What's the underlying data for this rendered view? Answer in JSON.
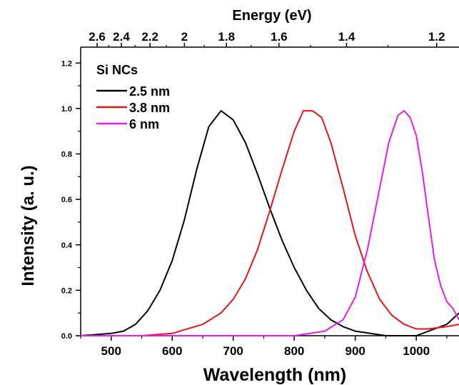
{
  "chart_data": {
    "type": "line",
    "legend_title": "Si NCs",
    "legend_position": "top-left",
    "xlabel": "Wavelength (nm)",
    "ylabel": "Intensity (a. u.)",
    "top_xlabel": "Energy (eV)",
    "xlim": [
      450,
      1070
    ],
    "ylim": [
      0,
      1.27
    ],
    "x_ticks": [
      500,
      600,
      700,
      800,
      900,
      1000
    ],
    "y_ticks": [
      0.0,
      0.2,
      0.4,
      0.6,
      0.8,
      1.0,
      1.2
    ],
    "y_tick_labels": [
      "0.0",
      "0.2",
      "0.4",
      "0.6",
      "0.8",
      "1.0",
      "1.2"
    ],
    "top_ticks": [
      {
        "label": "2.6",
        "value": 2.6
      },
      {
        "label": "2.4",
        "value": 2.4
      },
      {
        "label": "2.2",
        "value": 2.2
      },
      {
        "label": "2",
        "value": 2.0
      },
      {
        "label": "1.8",
        "value": 1.8
      },
      {
        "label": "1.6",
        "value": 1.6
      },
      {
        "label": "1.4",
        "value": 1.4
      },
      {
        "label": "1.2",
        "value": 1.2
      }
    ],
    "series": [
      {
        "name": "2.5 nm",
        "color": "#000000",
        "x": [
          450,
          500,
          520,
          540,
          560,
          580,
          600,
          620,
          640,
          660,
          680,
          700,
          720,
          740,
          760,
          780,
          800,
          820,
          840,
          860,
          880,
          900,
          950,
          1000,
          1050,
          1070
        ],
        "y": [
          0.0,
          0.01,
          0.02,
          0.05,
          0.11,
          0.2,
          0.33,
          0.51,
          0.73,
          0.92,
          0.99,
          0.95,
          0.85,
          0.71,
          0.56,
          0.42,
          0.3,
          0.2,
          0.12,
          0.07,
          0.04,
          0.02,
          0.0,
          0.0,
          0.05,
          0.1
        ]
      },
      {
        "name": "3.8 nm",
        "color": "#e3141c",
        "x": [
          450,
          550,
          600,
          650,
          680,
          700,
          720,
          740,
          760,
          780,
          800,
          815,
          830,
          845,
          860,
          880,
          900,
          920,
          940,
          960,
          980,
          1000,
          1020,
          1050,
          1070
        ],
        "y": [
          0.0,
          0.0,
          0.01,
          0.05,
          0.1,
          0.16,
          0.25,
          0.38,
          0.55,
          0.73,
          0.9,
          0.99,
          0.99,
          0.96,
          0.85,
          0.65,
          0.44,
          0.28,
          0.16,
          0.09,
          0.05,
          0.03,
          0.03,
          0.04,
          0.05
        ]
      },
      {
        "name": "6 nm",
        "color": "#e81ce8",
        "x": [
          450,
          800,
          850,
          880,
          900,
          920,
          940,
          955,
          970,
          980,
          990,
          1000,
          1010,
          1020,
          1030,
          1040,
          1050,
          1060,
          1070
        ],
        "y": [
          0.0,
          0.0,
          0.02,
          0.07,
          0.17,
          0.38,
          0.65,
          0.85,
          0.97,
          0.99,
          0.96,
          0.88,
          0.72,
          0.52,
          0.33,
          0.22,
          0.15,
          0.12,
          0.07
        ]
      }
    ]
  }
}
